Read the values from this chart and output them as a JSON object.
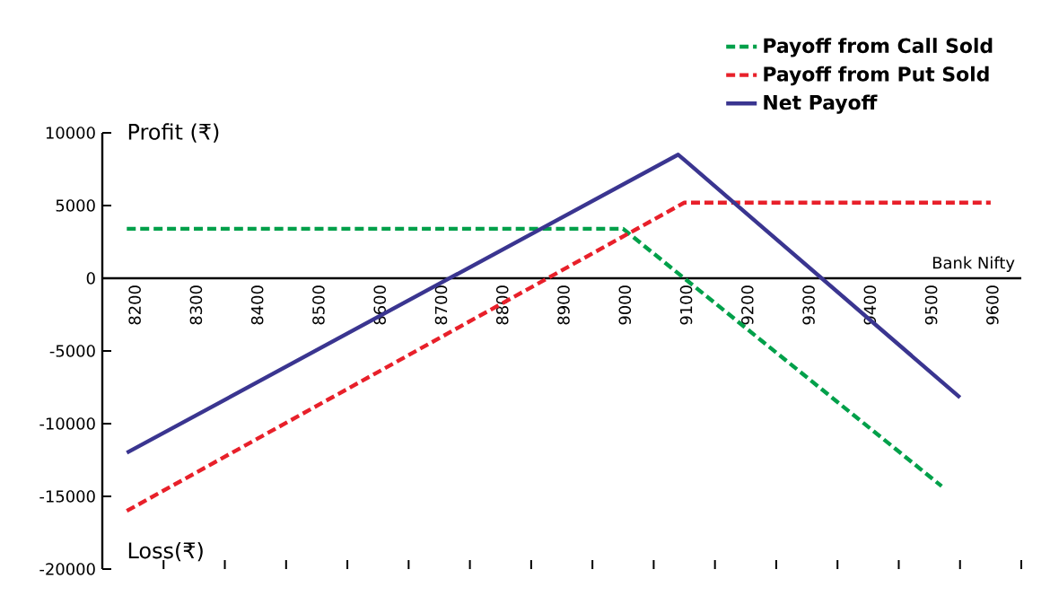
{
  "chart_data": {
    "type": "line",
    "ylabel": "Profit (₹)",
    "xlabel": "Bank Nifty",
    "annotations": [
      "Loss(₹)"
    ],
    "xlim": [
      8150,
      9650
    ],
    "xticks": [
      8200,
      8300,
      8400,
      8500,
      8600,
      8700,
      8800,
      8900,
      9000,
      9100,
      9200,
      9300,
      9400,
      9500,
      9600
    ],
    "ylim": [
      -20000,
      10000
    ],
    "yticks": [
      -20000,
      -15000,
      -10000,
      -5000,
      0,
      5000,
      10000
    ],
    "legend": "top right",
    "marker": "none",
    "series": [
      {
        "name": "Payoff from Call Sold",
        "color": "#00a04a",
        "line_style": "dashed",
        "x": [
          8190,
          9000,
          9520
        ],
        "values": [
          3400,
          3400,
          -14300
        ]
      },
      {
        "name": "Payoff from Put Sold",
        "color": "#e8202a",
        "line_style": "dashed",
        "x": [
          8190,
          9100,
          9600
        ],
        "values": [
          -16000,
          5200,
          5200
        ]
      },
      {
        "name": "Net Payoff",
        "color": "#3a3590",
        "line_style": "solid",
        "x": [
          8190,
          9090,
          9550
        ],
        "values": [
          -12000,
          8500,
          -8200
        ]
      }
    ]
  }
}
